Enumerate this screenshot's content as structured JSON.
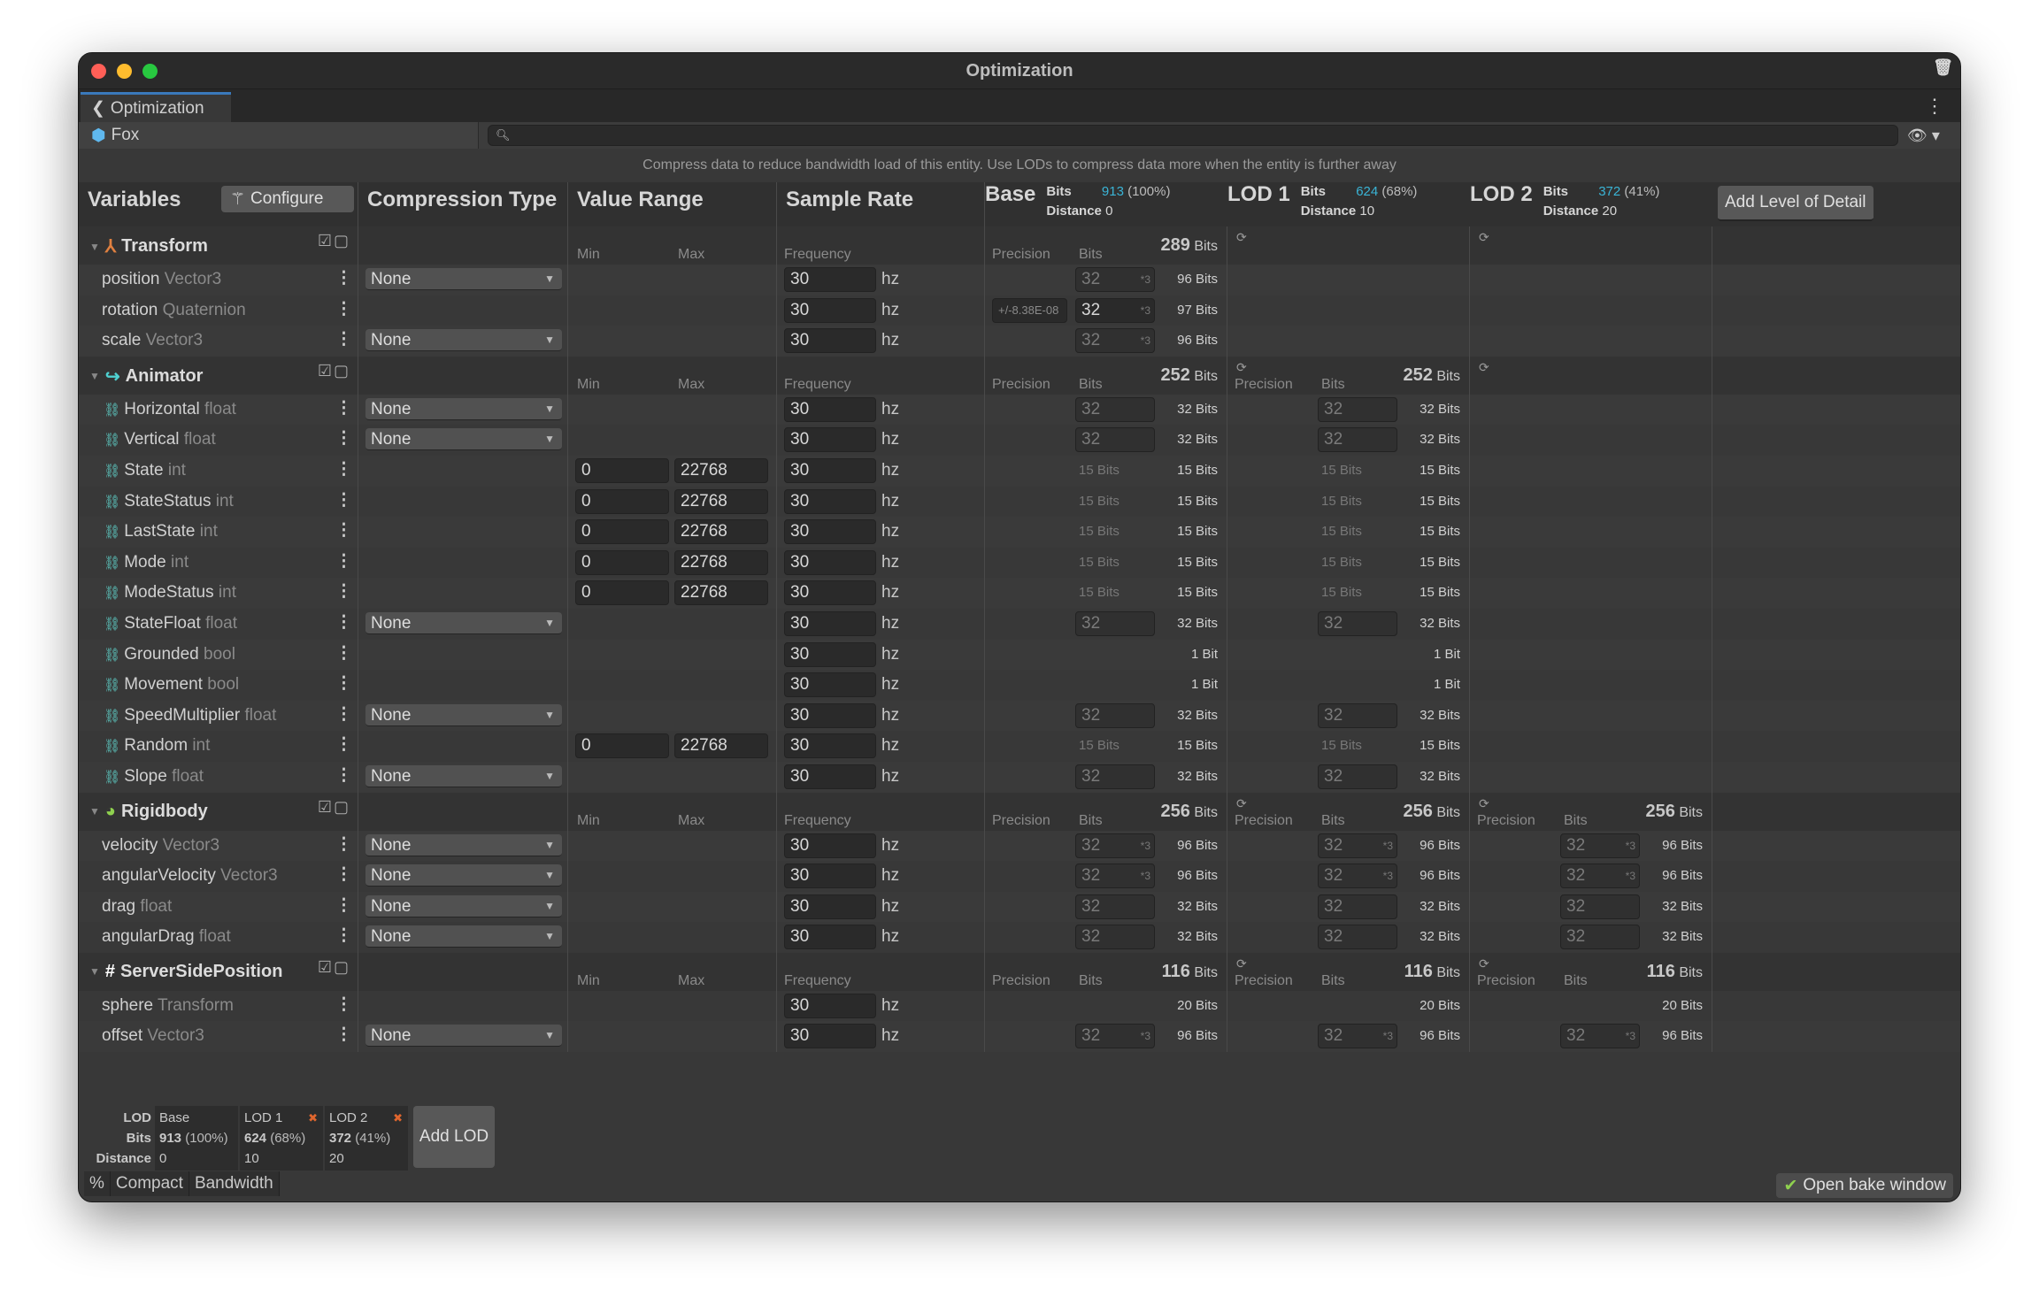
{
  "window": {
    "title": "Optimization"
  },
  "tab": {
    "label": "Optimization"
  },
  "entity": {
    "name": "Fox",
    "search_placeholder": ""
  },
  "info": "Compress data to reduce bandwidth load of this entity. Use LODs to compress data more when the entity is further away",
  "header": {
    "variables": "Variables",
    "configure": "Configure",
    "compression": "Compression Type",
    "value_range": "Value Range",
    "sample_rate": "Sample Rate",
    "add_lod": "Add Level of Detail",
    "lods": [
      {
        "name": "Base",
        "bits_label": "Bits",
        "bits": "913",
        "pct": "(100%)",
        "distance_label": "Distance",
        "distance": "0"
      },
      {
        "name": "LOD 1",
        "bits_label": "Bits",
        "bits": "624",
        "pct": "(68%)",
        "distance_label": "Distance",
        "distance": "10"
      },
      {
        "name": "LOD 2",
        "bits_label": "Bits",
        "bits": "372",
        "pct": "(41%)",
        "distance_label": "Distance",
        "distance": "20"
      }
    ]
  },
  "labels": {
    "min": "Min",
    "max": "Max",
    "frequency": "Frequency",
    "precision": "Precision",
    "bits": "Bits",
    "hz": "hz",
    "bits_unit": "Bits"
  },
  "groups": [
    {
      "name": "Transform",
      "icon": "transform-icon",
      "totals": [
        "289",
        null,
        null
      ],
      "vars": [
        {
          "name": "position",
          "type": "Vector3",
          "compression": "None",
          "frequency": "30",
          "cells": [
            {
              "bits": "32",
              "mult": "*3",
              "total": "96 Bits"
            },
            null,
            null
          ]
        },
        {
          "name": "rotation",
          "type": "Quaternion",
          "frequency": "30",
          "cells": [
            {
              "precision": "+/-8.38E-08",
              "bits": "32",
              "mult": "*3",
              "total": "97 Bits",
              "active": true
            },
            null,
            null
          ]
        },
        {
          "name": "scale",
          "type": "Vector3",
          "compression": "None",
          "frequency": "30",
          "cells": [
            {
              "bits": "32",
              "mult": "*3",
              "total": "96 Bits"
            },
            null,
            null
          ]
        }
      ]
    },
    {
      "name": "Animator",
      "icon": "animator-icon",
      "totals": [
        "252",
        "252",
        null
      ],
      "vars": [
        {
          "name": "Horizontal",
          "type": "float",
          "param": true,
          "compression": "None",
          "frequency": "30",
          "cells": [
            {
              "bits": "32",
              "total": "32 Bits"
            },
            {
              "bits": "32",
              "total": "32 Bits"
            },
            null
          ]
        },
        {
          "name": "Vertical",
          "type": "float",
          "param": true,
          "compression": "None",
          "frequency": "30",
          "cells": [
            {
              "bits": "32",
              "total": "32 Bits"
            },
            {
              "bits": "32",
              "total": "32 Bits"
            },
            null
          ]
        },
        {
          "name": "State",
          "type": "int",
          "param": true,
          "min": "0",
          "max": "22768",
          "frequency": "30",
          "cells": [
            {
              "label": "15 Bits",
              "total": "15 Bits"
            },
            {
              "label": "15 Bits",
              "total": "15 Bits"
            },
            null
          ]
        },
        {
          "name": "StateStatus",
          "type": "int",
          "param": true,
          "min": "0",
          "max": "22768",
          "frequency": "30",
          "cells": [
            {
              "label": "15 Bits",
              "total": "15 Bits"
            },
            {
              "label": "15 Bits",
              "total": "15 Bits"
            },
            null
          ]
        },
        {
          "name": "LastState",
          "type": "int",
          "param": true,
          "min": "0",
          "max": "22768",
          "frequency": "30",
          "cells": [
            {
              "label": "15 Bits",
              "total": "15 Bits"
            },
            {
              "label": "15 Bits",
              "total": "15 Bits"
            },
            null
          ]
        },
        {
          "name": "Mode",
          "type": "int",
          "param": true,
          "min": "0",
          "max": "22768",
          "frequency": "30",
          "cells": [
            {
              "label": "15 Bits",
              "total": "15 Bits"
            },
            {
              "label": "15 Bits",
              "total": "15 Bits"
            },
            null
          ]
        },
        {
          "name": "ModeStatus",
          "type": "int",
          "param": true,
          "min": "0",
          "max": "22768",
          "frequency": "30",
          "cells": [
            {
              "label": "15 Bits",
              "total": "15 Bits"
            },
            {
              "label": "15 Bits",
              "total": "15 Bits"
            },
            null
          ]
        },
        {
          "name": "StateFloat",
          "type": "float",
          "param": true,
          "compression": "None",
          "frequency": "30",
          "cells": [
            {
              "bits": "32",
              "total": "32 Bits"
            },
            {
              "bits": "32",
              "total": "32 Bits"
            },
            null
          ]
        },
        {
          "name": "Grounded",
          "type": "bool",
          "param": true,
          "frequency": "30",
          "cells": [
            {
              "total": "1 Bit"
            },
            {
              "total": "1 Bit"
            },
            null
          ]
        },
        {
          "name": "Movement",
          "type": "bool",
          "param": true,
          "frequency": "30",
          "cells": [
            {
              "total": "1 Bit"
            },
            {
              "total": "1 Bit"
            },
            null
          ]
        },
        {
          "name": "SpeedMultiplier",
          "type": "float",
          "param": true,
          "compression": "None",
          "frequency": "30",
          "cells": [
            {
              "bits": "32",
              "total": "32 Bits"
            },
            {
              "bits": "32",
              "total": "32 Bits"
            },
            null
          ]
        },
        {
          "name": "Random",
          "type": "int",
          "param": true,
          "min": "0",
          "max": "22768",
          "frequency": "30",
          "cells": [
            {
              "label": "15 Bits",
              "total": "15 Bits"
            },
            {
              "label": "15 Bits",
              "total": "15 Bits"
            },
            null
          ]
        },
        {
          "name": "Slope",
          "type": "float",
          "param": true,
          "compression": "None",
          "frequency": "30",
          "cells": [
            {
              "bits": "32",
              "total": "32 Bits"
            },
            {
              "bits": "32",
              "total": "32 Bits"
            },
            null
          ]
        }
      ]
    },
    {
      "name": "Rigidbody",
      "icon": "rigidbody-icon",
      "totals": [
        "256",
        "256",
        "256"
      ],
      "vars": [
        {
          "name": "velocity",
          "type": "Vector3",
          "compression": "None",
          "frequency": "30",
          "cells": [
            {
              "bits": "32",
              "mult": "*3",
              "total": "96 Bits"
            },
            {
              "bits": "32",
              "mult": "*3",
              "total": "96 Bits"
            },
            {
              "bits": "32",
              "mult": "*3",
              "total": "96 Bits"
            }
          ]
        },
        {
          "name": "angularVelocity",
          "type": "Vector3",
          "compression": "None",
          "frequency": "30",
          "cells": [
            {
              "bits": "32",
              "mult": "*3",
              "total": "96 Bits"
            },
            {
              "bits": "32",
              "mult": "*3",
              "total": "96 Bits"
            },
            {
              "bits": "32",
              "mult": "*3",
              "total": "96 Bits"
            }
          ]
        },
        {
          "name": "drag",
          "type": "float",
          "compression": "None",
          "frequency": "30",
          "cells": [
            {
              "bits": "32",
              "total": "32 Bits"
            },
            {
              "bits": "32",
              "total": "32 Bits"
            },
            {
              "bits": "32",
              "total": "32 Bits"
            }
          ]
        },
        {
          "name": "angularDrag",
          "type": "float",
          "compression": "None",
          "frequency": "30",
          "cells": [
            {
              "bits": "32",
              "total": "32 Bits"
            },
            {
              "bits": "32",
              "total": "32 Bits"
            },
            {
              "bits": "32",
              "total": "32 Bits"
            }
          ]
        }
      ]
    },
    {
      "name": "ServerSidePosition",
      "icon": "script-icon",
      "totals": [
        "116",
        "116",
        "116"
      ],
      "vars": [
        {
          "name": "sphere",
          "type": "Transform",
          "frequency": "30",
          "cells": [
            {
              "total": "20 Bits"
            },
            {
              "total": "20 Bits"
            },
            {
              "total": "20 Bits"
            }
          ]
        },
        {
          "name": "offset",
          "type": "Vector3",
          "compression": "None",
          "frequency": "30",
          "cells": [
            {
              "bits": "32",
              "mult": "*3",
              "total": "96 Bits"
            },
            {
              "bits": "32",
              "mult": "*3",
              "total": "96 Bits"
            },
            {
              "bits": "32",
              "mult": "*3",
              "total": "96 Bits"
            }
          ]
        }
      ]
    }
  ],
  "footer": {
    "labels": {
      "lod": "LOD",
      "bits": "Bits",
      "distance": "Distance"
    },
    "lods": [
      {
        "name": "Base",
        "bits": "913",
        "pct": "(100%)",
        "distance": "0"
      },
      {
        "name": "LOD 1",
        "bits": "624",
        "pct": "(68%)",
        "distance": "10",
        "removable": true
      },
      {
        "name": "LOD 2",
        "bits": "372",
        "pct": "(41%)",
        "distance": "20",
        "removable": true
      }
    ],
    "add_lod": "Add LOD",
    "tabs": [
      "%",
      "Compact",
      "Bandwidth"
    ],
    "bake": "Open bake window"
  },
  "colors": {
    "accent": "#3ab4d6",
    "remove": "#e0662e",
    "tab_highlight": "#3a79bb"
  }
}
